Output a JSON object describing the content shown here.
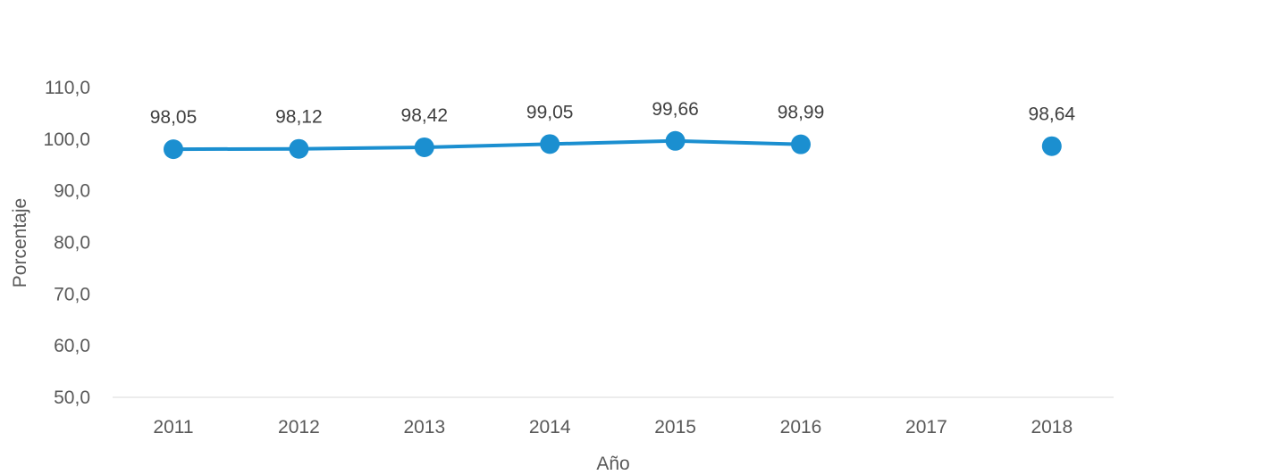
{
  "chart_data": {
    "type": "line",
    "categories": [
      "2011",
      "2012",
      "2013",
      "2014",
      "2015",
      "2016",
      "2017",
      "2018"
    ],
    "series": [
      {
        "values": [
          98.05,
          98.12,
          98.42,
          99.05,
          99.66,
          98.99,
          null,
          98.64
        ],
        "labels": [
          "98,05",
          "98,12",
          "98,42",
          "99,05",
          "99,66",
          "98,99",
          null,
          "98,64"
        ],
        "color": "#1b8fd0"
      }
    ],
    "y_ticks": [
      "50,0",
      "60,0",
      "70,0",
      "80,0",
      "90,0",
      "100,0",
      "110,0"
    ],
    "ylim": [
      50,
      110
    ],
    "xlabel": "Año",
    "ylabel": "Porcentaje",
    "grid": false,
    "colors": {
      "line": "#1b8fd0",
      "baseline": "#e6e6e6"
    }
  }
}
